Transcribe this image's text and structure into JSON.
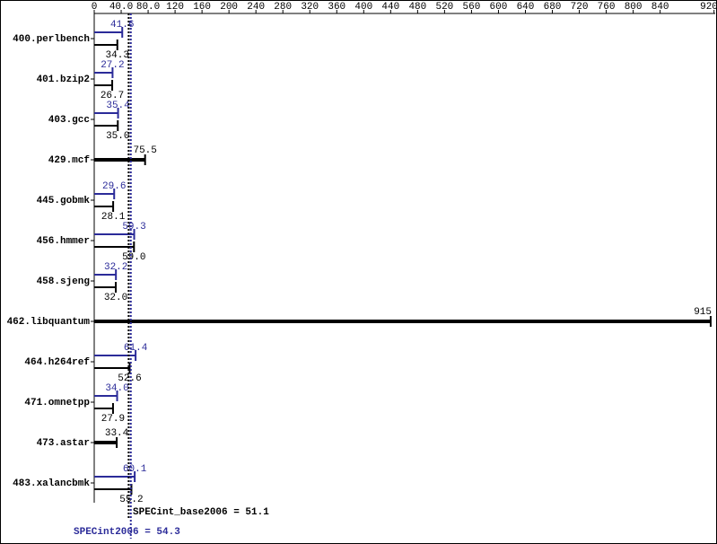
{
  "chart_data": {
    "type": "bar",
    "orientation": "horizontal",
    "categories": [
      "400.perlbench",
      "401.bzip2",
      "403.gcc",
      "429.mcf",
      "445.gobmk",
      "456.hmmer",
      "458.sjeng",
      "462.libquantum",
      "464.h264ref",
      "471.omnetpp",
      "473.astar",
      "483.xalancbmk"
    ],
    "series": [
      {
        "color": "#2b2b99",
        "values": [
          41.6,
          27.2,
          35.4,
          null,
          29.6,
          59.3,
          32.2,
          null,
          61.4,
          34.0,
          null,
          60.1
        ],
        "value_labels": [
          "41.6",
          "27.2",
          "35.4",
          null,
          "29.6",
          "59.3",
          "32.2",
          null,
          "61.4",
          "34.0",
          null,
          "60.1"
        ]
      },
      {
        "color": "#000000",
        "values": [
          34.3,
          26.7,
          35.0,
          75.5,
          28.1,
          59.0,
          32.0,
          915,
          52.6,
          27.9,
          33.4,
          55.2
        ],
        "value_labels": [
          "34.3",
          "26.7",
          "35.0",
          "75.5",
          "28.1",
          "59.0",
          "32.0",
          "915",
          "52.6",
          "27.9",
          "33.4",
          "55.2"
        ]
      }
    ],
    "xlim": [
      0,
      920
    ],
    "xticks": [
      0,
      {
        "value": 40,
        "label": "40.0"
      },
      {
        "value": 80,
        "label": "80.0"
      },
      120,
      160,
      200,
      240,
      280,
      320,
      360,
      400,
      440,
      480,
      520,
      560,
      600,
      640,
      680,
      720,
      760,
      800,
      840,
      920
    ],
    "annotations": [
      {
        "label": "SPECint_base2006 = 51.1",
        "value": 51.1,
        "color": "#000000"
      },
      {
        "label": "SPECint2006 = 54.3",
        "value": 54.3,
        "color": "#2b2b99"
      }
    ]
  }
}
